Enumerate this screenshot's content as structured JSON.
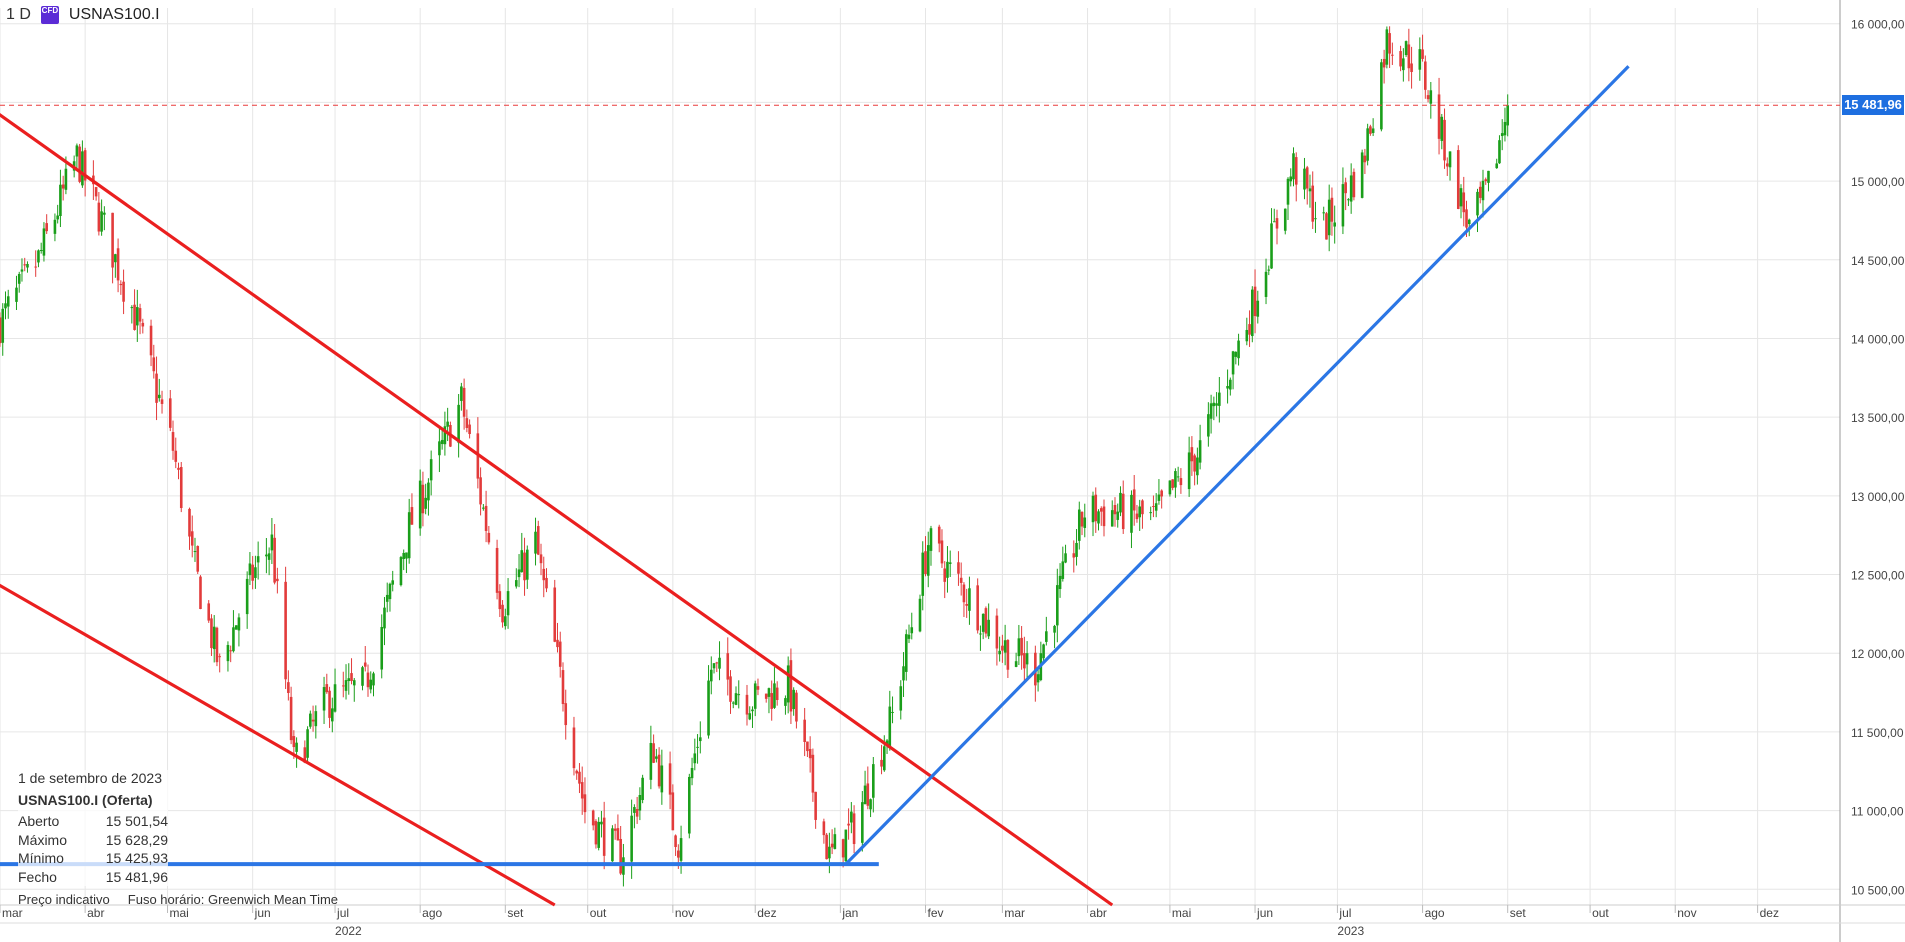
{
  "header": {
    "timeframe": "1 D",
    "instrument_badge": "CFD",
    "instrument_badge_sub": "1",
    "symbol": "USNAS100.I"
  },
  "info_panel": {
    "date": "1 de setembro de 2023",
    "title": "USNAS100.I (Oferta)",
    "rows": [
      {
        "label": "Aberto",
        "value": "15 501,54"
      },
      {
        "label": "Máximo",
        "value": "15 628,29"
      },
      {
        "label": "Mínimo",
        "value": "15 425,93"
      },
      {
        "label": "Fecho",
        "value": "15 481,96"
      }
    ]
  },
  "footer": {
    "price_type": "Preço indicativo",
    "timezone": "Fuso horário: Greenwich Mean Time"
  },
  "current_price_label": "15 481,96",
  "colors": {
    "up_candle": "#1a9e1a",
    "down_candle": "#e23b3b",
    "trendline_red": "#ea1f1f",
    "trendline_blue": "#2b76e5",
    "price_line": "#ea3b3b",
    "price_tag": "#1e6fe0",
    "grid": "#e6e6e6"
  },
  "chart_data": {
    "type": "candlestick",
    "ylim": [
      10400,
      16100
    ],
    "y_ticks": [
      {
        "value": 10500,
        "label": "10 500,00"
      },
      {
        "value": 11000,
        "label": "11 000,00"
      },
      {
        "value": 11500,
        "label": "11 500,00"
      },
      {
        "value": 12000,
        "label": "12 000,00"
      },
      {
        "value": 12500,
        "label": "12 500,00"
      },
      {
        "value": 13000,
        "label": "13 000,00"
      },
      {
        "value": 13500,
        "label": "13 500,00"
      },
      {
        "value": 14000,
        "label": "14 000,00"
      },
      {
        "value": 14500,
        "label": "14 500,00"
      },
      {
        "value": 15000,
        "label": "15 000,00"
      },
      {
        "value": 15500,
        "label": "15 500,00"
      },
      {
        "value": 16000,
        "label": "16 000,00"
      }
    ],
    "x_start": "2022-03-01",
    "x_end": "2023-12-31",
    "x_ticks": [
      {
        "date": "2022-03-01",
        "label": "mar"
      },
      {
        "date": "2022-04-01",
        "label": "abr"
      },
      {
        "date": "2022-05-01",
        "label": "mai"
      },
      {
        "date": "2022-06-01",
        "label": "jun"
      },
      {
        "date": "2022-07-01",
        "label": "jul"
      },
      {
        "date": "2022-08-01",
        "label": "ago"
      },
      {
        "date": "2022-09-01",
        "label": "set"
      },
      {
        "date": "2022-10-01",
        "label": "out"
      },
      {
        "date": "2022-11-01",
        "label": "nov"
      },
      {
        "date": "2022-12-01",
        "label": "dez"
      },
      {
        "date": "2023-01-01",
        "label": "jan"
      },
      {
        "date": "2023-02-01",
        "label": "fev"
      },
      {
        "date": "2023-03-01",
        "label": "mar"
      },
      {
        "date": "2023-04-01",
        "label": "abr"
      },
      {
        "date": "2023-05-01",
        "label": "mai"
      },
      {
        "date": "2023-06-01",
        "label": "jun"
      },
      {
        "date": "2023-07-01",
        "label": "jul"
      },
      {
        "date": "2023-08-01",
        "label": "ago"
      },
      {
        "date": "2023-09-01",
        "label": "set"
      },
      {
        "date": "2023-10-01",
        "label": "out"
      },
      {
        "date": "2023-11-01",
        "label": "nov"
      },
      {
        "date": "2023-12-01",
        "label": "dez"
      }
    ],
    "year_labels": [
      {
        "date": "2022-07-01",
        "label": "2022"
      },
      {
        "date": "2023-07-01",
        "label": "2023"
      }
    ],
    "close_path": [
      {
        "date": "2022-03-01",
        "value": 14100
      },
      {
        "date": "2022-03-15",
        "value": 14500
      },
      {
        "date": "2022-03-29",
        "value": 15150
      },
      {
        "date": "2022-04-08",
        "value": 14700
      },
      {
        "date": "2022-04-20",
        "value": 14100
      },
      {
        "date": "2022-05-03",
        "value": 13300
      },
      {
        "date": "2022-05-10",
        "value": 12600
      },
      {
        "date": "2022-05-20",
        "value": 11900
      },
      {
        "date": "2022-06-01",
        "value": 12500
      },
      {
        "date": "2022-06-08",
        "value": 12700
      },
      {
        "date": "2022-06-16",
        "value": 11300
      },
      {
        "date": "2022-06-28",
        "value": 11700
      },
      {
        "date": "2022-07-12",
        "value": 11800
      },
      {
        "date": "2022-07-28",
        "value": 12800
      },
      {
        "date": "2022-08-16",
        "value": 13600
      },
      {
        "date": "2022-08-31",
        "value": 12300
      },
      {
        "date": "2022-09-12",
        "value": 12700
      },
      {
        "date": "2022-09-30",
        "value": 11000
      },
      {
        "date": "2022-10-13",
        "value": 10700
      },
      {
        "date": "2022-10-25",
        "value": 11400
      },
      {
        "date": "2022-11-03",
        "value": 10800
      },
      {
        "date": "2022-11-15",
        "value": 11900
      },
      {
        "date": "2022-11-30",
        "value": 11700
      },
      {
        "date": "2022-12-13",
        "value": 11800
      },
      {
        "date": "2022-12-28",
        "value": 10700
      },
      {
        "date": "2023-01-06",
        "value": 10900
      },
      {
        "date": "2023-01-20",
        "value": 11600
      },
      {
        "date": "2023-02-02",
        "value": 12700
      },
      {
        "date": "2023-02-15",
        "value": 12400
      },
      {
        "date": "2023-03-01",
        "value": 12050
      },
      {
        "date": "2023-03-13",
        "value": 11900
      },
      {
        "date": "2023-03-31",
        "value": 12900
      },
      {
        "date": "2023-04-12",
        "value": 12900
      },
      {
        "date": "2023-04-25",
        "value": 12850
      },
      {
        "date": "2023-05-12",
        "value": 13300
      },
      {
        "date": "2023-05-31",
        "value": 14200
      },
      {
        "date": "2023-06-15",
        "value": 15100
      },
      {
        "date": "2023-06-26",
        "value": 14700
      },
      {
        "date": "2023-07-10",
        "value": 15100
      },
      {
        "date": "2023-07-19",
        "value": 15900
      },
      {
        "date": "2023-07-31",
        "value": 15750
      },
      {
        "date": "2023-08-18",
        "value": 14700
      },
      {
        "date": "2023-08-25",
        "value": 14950
      },
      {
        "date": "2023-09-01",
        "value": 15481.96
      }
    ],
    "trendlines": [
      {
        "color": "red",
        "from": {
          "date": "2022-02-25",
          "value": 15470
        },
        "to": {
          "date": "2023-04-10",
          "value": 10400
        }
      },
      {
        "color": "red",
        "from": {
          "date": "2022-02-25",
          "value": 12470
        },
        "to": {
          "date": "2022-09-19",
          "value": 10400
        }
      },
      {
        "color": "blue",
        "from": {
          "date": "2022-02-25",
          "value": 10660
        },
        "to": {
          "date": "2023-01-15",
          "value": 10660
        }
      },
      {
        "color": "blue",
        "from": {
          "date": "2023-01-03",
          "value": 10660
        },
        "to": {
          "date": "2023-10-15",
          "value": 15730
        }
      }
    ],
    "current_price": 15481.96
  }
}
